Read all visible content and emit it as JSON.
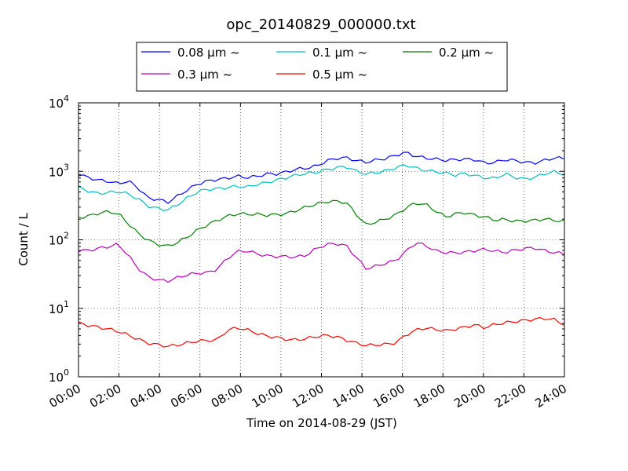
{
  "chart_data": {
    "type": "line",
    "title": "opc_20140829_000000.txt",
    "xlabel": "Time on 2014-08-29 (JST)",
    "ylabel": "Count / L",
    "yscale": "log",
    "ylim": [
      1,
      10000
    ],
    "xlim": [
      "00:00",
      "24:00"
    ],
    "grid": true,
    "legend_placement": "top-center, above plot",
    "x_ticks": [
      "00:00",
      "02:00",
      "04:00",
      "06:00",
      "08:00",
      "10:00",
      "12:00",
      "14:00",
      "16:00",
      "18:00",
      "20:00",
      "22:00",
      "24:00"
    ],
    "y_ticks": [
      {
        "value": 1,
        "base": "10",
        "exp": "0"
      },
      {
        "value": 10,
        "base": "10",
        "exp": "1"
      },
      {
        "value": 100,
        "base": "10",
        "exp": "2"
      },
      {
        "value": 1000,
        "base": "10",
        "exp": "3"
      },
      {
        "value": 10000,
        "base": "10",
        "exp": "4"
      }
    ],
    "x": [
      "00:00",
      "00:30",
      "01:00",
      "01:30",
      "02:00",
      "02:20",
      "02:40",
      "03:00",
      "03:30",
      "04:00",
      "04:30",
      "05:00",
      "05:30",
      "06:00",
      "06:30",
      "07:00",
      "07:30",
      "08:00",
      "08:30",
      "09:00",
      "09:30",
      "10:00",
      "10:30",
      "11:00",
      "11:30",
      "12:00",
      "12:30",
      "13:00",
      "13:30",
      "14:00",
      "14:30",
      "15:00",
      "15:30",
      "16:00",
      "16:30",
      "17:00",
      "17:30",
      "18:00",
      "18:30",
      "19:00",
      "19:30",
      "20:00",
      "20:30",
      "21:00",
      "21:30",
      "22:00",
      "22:30",
      "23:00",
      "23:30",
      "24:00"
    ],
    "series": [
      {
        "name": "0.08 μm ~",
        "color": "#0000ff",
        "values": [
          900,
          800,
          720,
          690,
          630,
          700,
          560,
          400,
          390,
          360,
          450,
          560,
          680,
          750,
          780,
          800,
          850,
          790,
          820,
          880,
          880,
          950,
          1050,
          1100,
          1200,
          1450,
          1600,
          1650,
          1500,
          1400,
          1500,
          1550,
          1700,
          1850,
          1600,
          1500,
          1450,
          1400,
          1450,
          1500,
          1500,
          1350,
          1400,
          1550,
          1500,
          1400,
          1350,
          1450,
          1550,
          1500
        ]
      },
      {
        "name": "0.1 μm ~",
        "color": "#00bfbf",
        "values": [
          600,
          520,
          470,
          480,
          490,
          450,
          380,
          300,
          280,
          270,
          330,
          420,
          520,
          570,
          580,
          600,
          620,
          590,
          640,
          670,
          720,
          780,
          850,
          900,
          950,
          1050,
          1150,
          1200,
          1050,
          950,
          1000,
          1050,
          1150,
          1250,
          1100,
          1000,
          950,
          900,
          850,
          900,
          850,
          800,
          800,
          950,
          850,
          800,
          850,
          950,
          1000,
          900
        ]
      },
      {
        "name": "0.2 μm ~",
        "color": "#008000",
        "values": [
          220,
          230,
          250,
          260,
          240,
          170,
          120,
          95,
          82,
          78,
          90,
          110,
          140,
          170,
          200,
          230,
          250,
          245,
          240,
          230,
          230,
          235,
          260,
          290,
          320,
          350,
          360,
          350,
          240,
          170,
          190,
          210,
          240,
          300,
          350,
          330,
          260,
          210,
          230,
          240,
          220,
          210,
          190,
          200,
          190,
          195,
          200,
          210,
          200,
          190
        ]
      },
      {
        "name": "0.3 μm ~",
        "color": "#bf00bf",
        "values": [
          72,
          73,
          78,
          82,
          88,
          60,
          38,
          28,
          25,
          24,
          27,
          30,
          32,
          33,
          38,
          55,
          70,
          72,
          65,
          60,
          58,
          57,
          55,
          58,
          72,
          82,
          85,
          80,
          55,
          38,
          42,
          47,
          52,
          70,
          95,
          85,
          70,
          65,
          63,
          64,
          67,
          70,
          66,
          64,
          70,
          75,
          78,
          72,
          68,
          65
        ]
      },
      {
        "name": "0.5 μm ~",
        "color": "#ff0000",
        "values": [
          6.2,
          5.8,
          5.5,
          5.2,
          4.8,
          4.2,
          3.6,
          3.1,
          2.9,
          2.7,
          2.8,
          3.0,
          3.2,
          3.3,
          3.4,
          4.8,
          5.3,
          5.0,
          4.5,
          4.1,
          3.9,
          3.6,
          3.5,
          3.6,
          3.8,
          3.9,
          3.7,
          3.3,
          3.0,
          2.8,
          2.9,
          3.0,
          3.2,
          4.2,
          5.0,
          5.4,
          5.1,
          4.8,
          5.0,
          5.3,
          5.6,
          5.0,
          5.6,
          5.9,
          6.2,
          6.5,
          6.9,
          7.2,
          7.0,
          6.0
        ]
      }
    ]
  }
}
